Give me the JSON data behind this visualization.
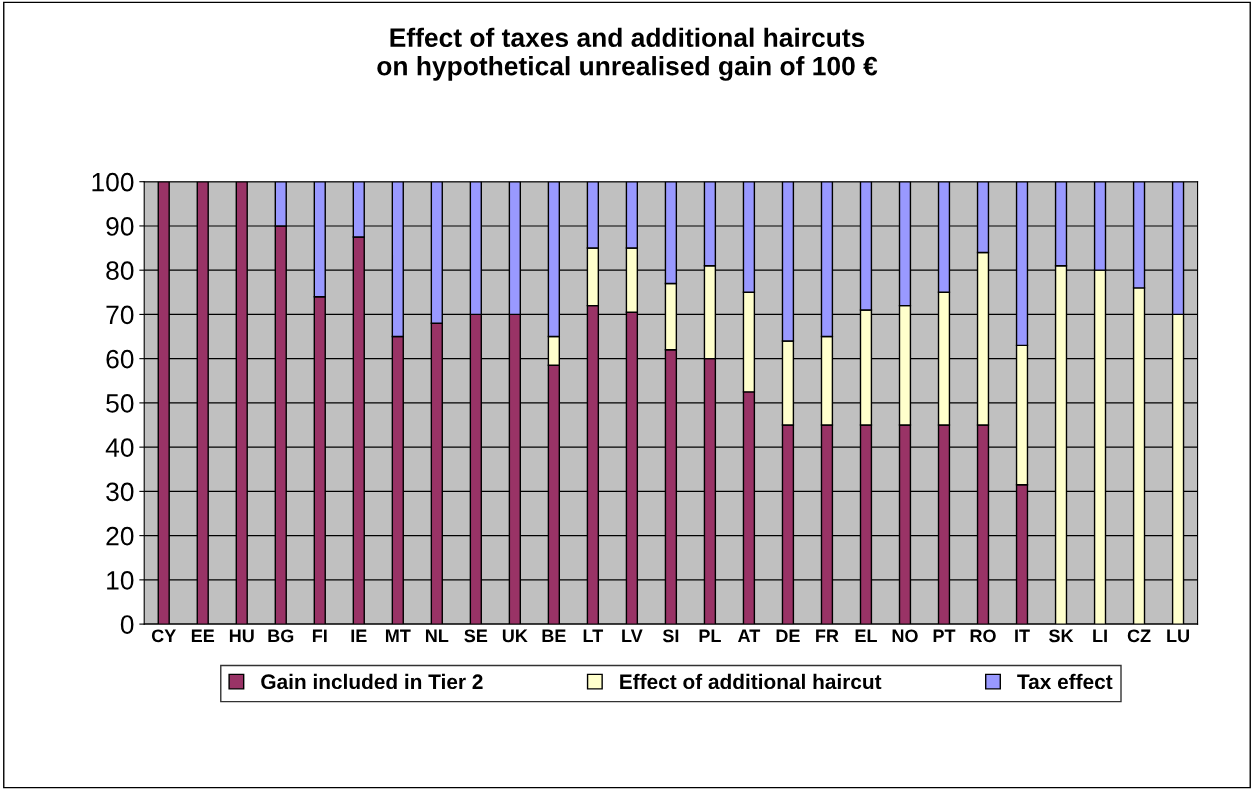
{
  "chart_data": {
    "type": "bar",
    "stacked": true,
    "title": "Effect of taxes and additional haircuts\non hypothetical unrealised gain of 100 €",
    "categories": [
      "CY",
      "EE",
      "HU",
      "BG",
      "FI",
      "IE",
      "MT",
      "NL",
      "SE",
      "UK",
      "BE",
      "LT",
      "LV",
      "SI",
      "PL",
      "AT",
      "DE",
      "FR",
      "EL",
      "NO",
      "PT",
      "RO",
      "IT",
      "SK",
      "LI",
      "CZ",
      "LU"
    ],
    "series": [
      {
        "name": "Gain included in Tier 2",
        "color": "#993366",
        "values": [
          100,
          100,
          100,
          90,
          74,
          87.5,
          65,
          68,
          70,
          70,
          58.5,
          72,
          70.5,
          62,
          60,
          52.5,
          45,
          45,
          45,
          45,
          45,
          45,
          31.5,
          null,
          null,
          null,
          null
        ]
      },
      {
        "name": "Effect of additional haircut",
        "color": "#ffffcc",
        "values": [
          null,
          null,
          null,
          null,
          null,
          null,
          null,
          null,
          null,
          null,
          6.5,
          13,
          14.5,
          15,
          21,
          22.5,
          19,
          20,
          26,
          27,
          30,
          39,
          31.5,
          81,
          80,
          76,
          70
        ]
      },
      {
        "name": "Tax effect",
        "color": "#9999ff",
        "values": [
          null,
          null,
          null,
          10,
          26,
          12.5,
          35,
          32,
          30,
          30,
          35,
          15,
          15,
          23,
          19,
          25,
          36,
          35,
          29,
          28,
          25,
          16,
          37,
          19,
          20,
          24,
          30
        ]
      }
    ],
    "ylim": [
      0,
      100
    ],
    "yticks": [
      0,
      10,
      20,
      30,
      40,
      50,
      60,
      70,
      80,
      90,
      100
    ],
    "grid": "y",
    "legend": "bottom"
  }
}
